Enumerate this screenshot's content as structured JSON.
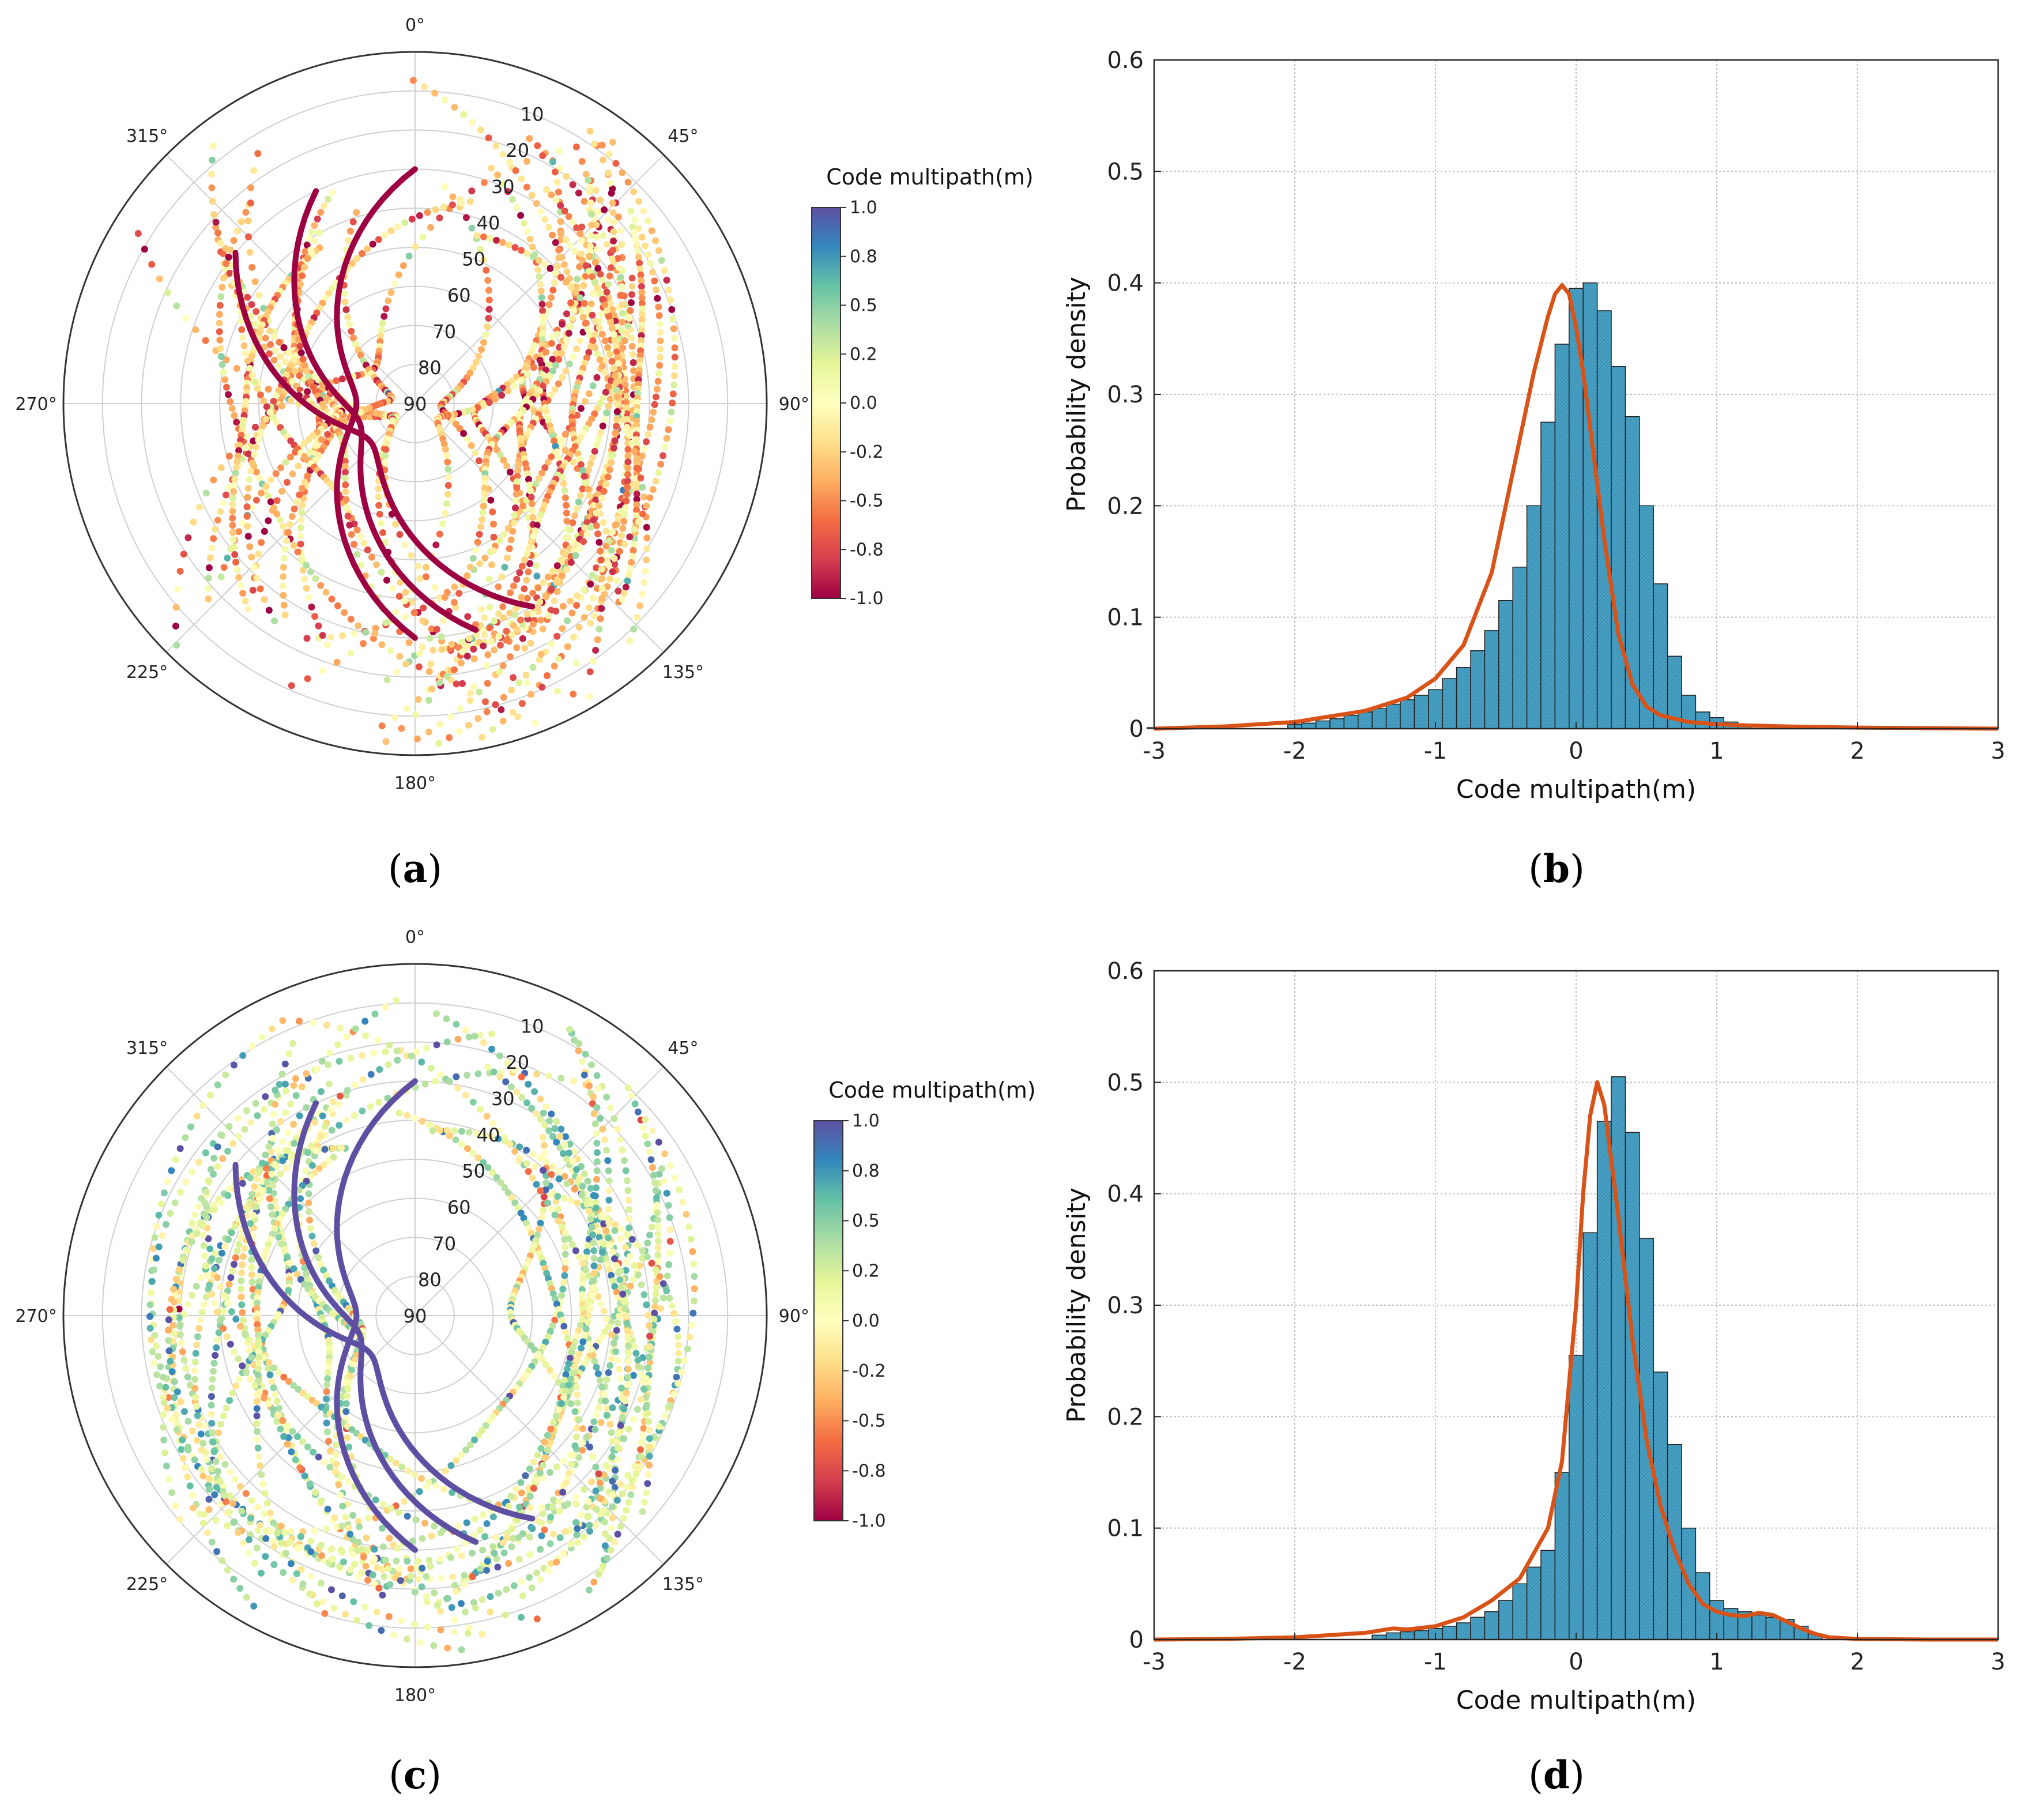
{
  "chart_data": [
    {
      "type": "skyplot",
      "panel": "(a)",
      "panel_letter": "a",
      "colorbar_title": "Code multipath(m)",
      "colorbar_ticks": [
        "1.0",
        "0.8",
        "0.5",
        "0.2",
        "0.0",
        "-0.2",
        "-0.5",
        "-0.8",
        "-1.0"
      ],
      "colorbar_range": [
        -1.0,
        1.0
      ],
      "azimuth_labels": [
        {
          "az": 0,
          "text": "0°"
        },
        {
          "az": 45,
          "text": "45°"
        },
        {
          "az": 90,
          "text": "90°"
        },
        {
          "az": 135,
          "text": "135°"
        },
        {
          "az": 180,
          "text": "180°"
        },
        {
          "az": 225,
          "text": "225°"
        },
        {
          "az": 270,
          "text": "270°"
        },
        {
          "az": 315,
          "text": "315°"
        }
      ],
      "elevation_labels": [
        "10",
        "20",
        "30",
        "40",
        "50",
        "60",
        "70",
        "80",
        "90"
      ],
      "track_bias": -0.3,
      "track_spread": 0.35,
      "highlight_value": -1.0
    },
    {
      "type": "histogram",
      "panel": "(b)",
      "panel_letter": "b",
      "xlabel": "Code multipath(m)",
      "ylabel": "Probability density",
      "xlim": [
        -3,
        3
      ],
      "ylim": [
        0,
        0.6
      ],
      "xticks": [
        "-3",
        "-2",
        "-1",
        "0",
        "1",
        "2",
        "3"
      ],
      "yticks": [
        "0",
        "0.1",
        "0.2",
        "0.3",
        "0.4",
        "0.5",
        "0.6"
      ],
      "bin_width": 0.1,
      "bins": [
        [
          -3.0,
          0.001
        ],
        [
          -2.5,
          0.002
        ],
        [
          -2.0,
          0.004
        ],
        [
          -1.9,
          0.005
        ],
        [
          -1.8,
          0.007
        ],
        [
          -1.7,
          0.009
        ],
        [
          -1.6,
          0.012
        ],
        [
          -1.5,
          0.015
        ],
        [
          -1.4,
          0.018
        ],
        [
          -1.3,
          0.022
        ],
        [
          -1.2,
          0.026
        ],
        [
          -1.1,
          0.03
        ],
        [
          -1.0,
          0.035
        ],
        [
          -0.9,
          0.045
        ],
        [
          -0.8,
          0.055
        ],
        [
          -0.7,
          0.07
        ],
        [
          -0.6,
          0.088
        ],
        [
          -0.5,
          0.115
        ],
        [
          -0.4,
          0.145
        ],
        [
          -0.3,
          0.2
        ],
        [
          -0.2,
          0.275
        ],
        [
          -0.1,
          0.345
        ],
        [
          0.0,
          0.395
        ],
        [
          0.1,
          0.4
        ],
        [
          0.2,
          0.375
        ],
        [
          0.3,
          0.325
        ],
        [
          0.4,
          0.28
        ],
        [
          0.5,
          0.2
        ],
        [
          0.6,
          0.13
        ],
        [
          0.7,
          0.065
        ],
        [
          0.8,
          0.03
        ],
        [
          0.9,
          0.015
        ],
        [
          1.0,
          0.01
        ],
        [
          1.1,
          0.006
        ],
        [
          1.2,
          0.004
        ],
        [
          1.5,
          0.002
        ]
      ],
      "kde_x": [
        -3,
        -2.5,
        -2,
        -1.5,
        -1.2,
        -1,
        -0.8,
        -0.6,
        -0.5,
        -0.4,
        -0.3,
        -0.2,
        -0.15,
        -0.1,
        -0.05,
        0,
        0.05,
        0.1,
        0.2,
        0.3,
        0.4,
        0.5,
        0.6,
        0.8,
        1,
        1.2,
        1.5,
        2,
        2.5,
        3
      ],
      "kde_y": [
        0.0,
        0.002,
        0.006,
        0.016,
        0.028,
        0.045,
        0.075,
        0.14,
        0.2,
        0.26,
        0.32,
        0.37,
        0.39,
        0.398,
        0.39,
        0.36,
        0.32,
        0.27,
        0.17,
        0.085,
        0.04,
        0.02,
        0.012,
        0.006,
        0.004,
        0.003,
        0.002,
        0.001,
        0.0005,
        0.0
      ]
    },
    {
      "type": "skyplot",
      "panel": "(c)",
      "panel_letter": "c",
      "colorbar_title": "Code multipath(m)",
      "colorbar_ticks": [
        "1.0",
        "0.8",
        "0.5",
        "0.2",
        "0.0",
        "-0.2",
        "-0.5",
        "-0.8",
        "-1.0"
      ],
      "colorbar_range": [
        -1.0,
        1.0
      ],
      "azimuth_labels": [
        {
          "az": 0,
          "text": "0°"
        },
        {
          "az": 45,
          "text": "45°"
        },
        {
          "az": 90,
          "text": "90°"
        },
        {
          "az": 135,
          "text": "135°"
        },
        {
          "az": 180,
          "text": "180°"
        },
        {
          "az": 225,
          "text": "225°"
        },
        {
          "az": 270,
          "text": "270°"
        },
        {
          "az": 315,
          "text": "315°"
        }
      ],
      "elevation_labels": [
        "10",
        "20",
        "30",
        "40",
        "50",
        "60",
        "70",
        "80",
        "90"
      ],
      "track_bias": 0.2,
      "track_spread": 0.35,
      "highlight_value": 1.0
    },
    {
      "type": "histogram",
      "panel": "(d)",
      "panel_letter": "d",
      "xlabel": "Code multipath(m)",
      "ylabel": "Probability density",
      "xlim": [
        -3,
        3
      ],
      "ylim": [
        0,
        0.6
      ],
      "xticks": [
        "-3",
        "-2",
        "-1",
        "0",
        "1",
        "2",
        "3"
      ],
      "yticks": [
        "0",
        "0.1",
        "0.2",
        "0.3",
        "0.4",
        "0.5",
        "0.6"
      ],
      "bin_width": 0.1,
      "bins": [
        [
          -1.4,
          0.004
        ],
        [
          -1.3,
          0.006
        ],
        [
          -1.2,
          0.007
        ],
        [
          -1.1,
          0.008
        ],
        [
          -1.0,
          0.01
        ],
        [
          -0.9,
          0.012
        ],
        [
          -0.8,
          0.015
        ],
        [
          -0.7,
          0.02
        ],
        [
          -0.6,
          0.025
        ],
        [
          -0.5,
          0.035
        ],
        [
          -0.4,
          0.05
        ],
        [
          -0.3,
          0.065
        ],
        [
          -0.2,
          0.08
        ],
        [
          -0.1,
          0.15
        ],
        [
          0.0,
          0.255
        ],
        [
          0.1,
          0.365
        ],
        [
          0.2,
          0.465
        ],
        [
          0.3,
          0.505
        ],
        [
          0.4,
          0.455
        ],
        [
          0.5,
          0.36
        ],
        [
          0.6,
          0.24
        ],
        [
          0.7,
          0.175
        ],
        [
          0.8,
          0.1
        ],
        [
          0.9,
          0.06
        ],
        [
          1.0,
          0.035
        ],
        [
          1.1,
          0.028
        ],
        [
          1.2,
          0.025
        ],
        [
          1.3,
          0.022
        ],
        [
          1.4,
          0.02
        ],
        [
          1.5,
          0.018
        ],
        [
          1.6,
          0.012
        ],
        [
          1.7,
          0.005
        ]
      ],
      "kde_x": [
        -3,
        -2.5,
        -2,
        -1.5,
        -1.3,
        -1.2,
        -1,
        -0.8,
        -0.6,
        -0.4,
        -0.2,
        -0.1,
        0,
        0.05,
        0.1,
        0.15,
        0.2,
        0.3,
        0.4,
        0.5,
        0.6,
        0.7,
        0.8,
        0.9,
        1,
        1.1,
        1.2,
        1.3,
        1.4,
        1.5,
        1.6,
        1.7,
        1.8,
        2,
        2.5,
        3
      ],
      "kde_y": [
        0.0,
        0.0005,
        0.002,
        0.006,
        0.01,
        0.009,
        0.012,
        0.02,
        0.035,
        0.055,
        0.1,
        0.16,
        0.3,
        0.4,
        0.47,
        0.5,
        0.48,
        0.38,
        0.27,
        0.18,
        0.12,
        0.08,
        0.05,
        0.032,
        0.025,
        0.022,
        0.021,
        0.024,
        0.022,
        0.016,
        0.01,
        0.005,
        0.002,
        0.0005,
        0.0,
        0.0
      ]
    }
  ]
}
